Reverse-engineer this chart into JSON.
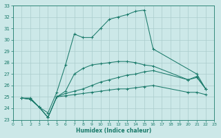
{
  "xlabel": "Humidex (Indice chaleur)",
  "bg_color": "#cce8e8",
  "line_color": "#1a7a6a",
  "grid_color": "#aacccc",
  "xlim": [
    0,
    23
  ],
  "ylim": [
    23,
    33
  ],
  "xticks": [
    0,
    1,
    2,
    3,
    4,
    5,
    6,
    7,
    8,
    9,
    10,
    11,
    12,
    13,
    14,
    15,
    16,
    17,
    18,
    19,
    20,
    21,
    22,
    23
  ],
  "yticks": [
    23,
    24,
    25,
    26,
    27,
    28,
    29,
    30,
    31,
    32,
    33
  ],
  "lines": [
    {
      "x": [
        1,
        2,
        3,
        4,
        5,
        6,
        7,
        8,
        9,
        10,
        11,
        12,
        13,
        14,
        15,
        16,
        21,
        22
      ],
      "y": [
        24.9,
        24.9,
        24.1,
        23.6,
        25.4,
        27.8,
        30.5,
        30.2,
        30.2,
        31.0,
        31.8,
        32.0,
        32.2,
        32.5,
        32.6,
        29.2,
        27.0,
        25.7
      ]
    },
    {
      "x": [
        1,
        2,
        3,
        4,
        5,
        6,
        7,
        8,
        9,
        10,
        11,
        12,
        13,
        14,
        15,
        16,
        20,
        21,
        22
      ],
      "y": [
        24.9,
        24.8,
        24.1,
        23.2,
        25.0,
        25.5,
        27.0,
        27.5,
        27.8,
        27.9,
        28.0,
        28.1,
        28.1,
        28.0,
        27.8,
        27.7,
        26.5,
        26.8,
        25.7
      ]
    },
    {
      "x": [
        1,
        2,
        3,
        4,
        5,
        6,
        7,
        8,
        9,
        10,
        11,
        12,
        13,
        14,
        15,
        16,
        20,
        21,
        22
      ],
      "y": [
        24.9,
        24.8,
        24.1,
        23.2,
        25.0,
        25.3,
        25.5,
        25.7,
        26.0,
        26.3,
        26.5,
        26.7,
        26.9,
        27.0,
        27.2,
        27.3,
        26.5,
        26.7,
        25.7
      ]
    },
    {
      "x": [
        1,
        2,
        3,
        4,
        5,
        6,
        7,
        8,
        9,
        10,
        11,
        12,
        13,
        14,
        15,
        16,
        20,
        21,
        22
      ],
      "y": [
        24.9,
        24.8,
        24.1,
        23.2,
        25.0,
        25.1,
        25.2,
        25.3,
        25.4,
        25.5,
        25.6,
        25.7,
        25.7,
        25.8,
        25.9,
        26.0,
        25.4,
        25.4,
        25.2
      ]
    }
  ]
}
